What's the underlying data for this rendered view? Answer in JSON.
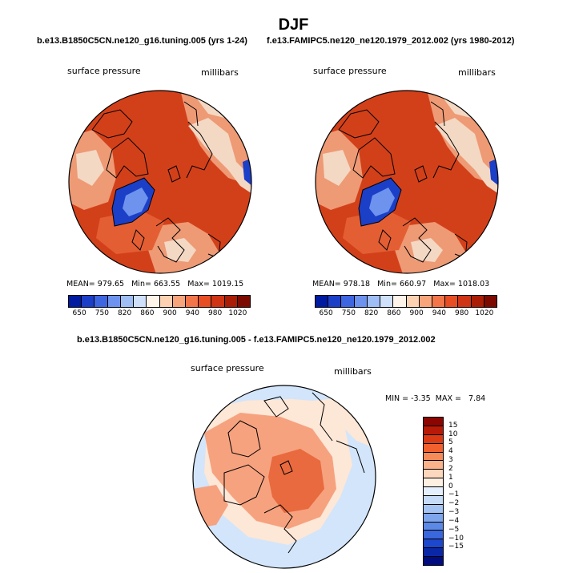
{
  "title": "DJF",
  "panels": [
    {
      "id": "left",
      "subtitle": "b.e13.B1850C5CN.ne120_g16.tuning.005 (yrs 1-24)",
      "variable": "surface pressure",
      "units": "millibars",
      "stats": {
        "mean_label": "MEAN=",
        "mean": "979.65",
        "min_label": "Min=",
        "min": "663.55",
        "max_label": "Max=",
        "max": "1019.15"
      }
    },
    {
      "id": "right",
      "subtitle": "f.e13.FAMIPC5.ne120_ne120.1979_2012.002 (yrs 1980-2012)",
      "variable": "surface pressure",
      "units": "millibars",
      "stats": {
        "mean_label": "MEAN=",
        "mean": "978.18",
        "min_label": "Min=",
        "min": "660.97",
        "max_label": "Max=",
        "max": "1018.03"
      }
    }
  ],
  "abs_colorbar": {
    "colors": [
      "#001aa0",
      "#1c3fc8",
      "#3e66e0",
      "#6d93ee",
      "#9fbef5",
      "#cfe0fb",
      "#fff4ea",
      "#fdd2b2",
      "#f9a57c",
      "#f3764a",
      "#e74e24",
      "#cf3414",
      "#aa1d06",
      "#7c0a00"
    ],
    "ticks": [
      "650",
      "750",
      "820",
      "860",
      "900",
      "940",
      "980",
      "1020"
    ]
  },
  "diff_panel": {
    "subtitle": "b.e13.B1850C5CN.ne120_g16.tuning.005 - f.e13.FAMIPC5.ne120_ne120.1979_2012.002",
    "variable": "surface pressure",
    "units": "millibars",
    "stats": {
      "min_label": "MIN =",
      "min": "-3.35",
      "max_label": "MAX =",
      "max": "7.84"
    }
  },
  "diff_colorbar": {
    "colors": [
      "#8c0500",
      "#b81a08",
      "#dc3a14",
      "#f1602e",
      "#f68a58",
      "#f9b28a",
      "#fcd6bd",
      "#fff0e2",
      "#e4f0fd",
      "#c6dcf8",
      "#a5c4f3",
      "#7fa6ed",
      "#5c88e6",
      "#3a67dd",
      "#1d47cc",
      "#0a28a6",
      "#000c80"
    ],
    "ticks": [
      "15",
      "10",
      "5",
      "4",
      "3",
      "2",
      "1",
      "0",
      "−1",
      "−2",
      "−3",
      "−4",
      "−5",
      "−10",
      "−15"
    ]
  },
  "map_colors": {
    "land_light": "#f3d8c4",
    "land_mid": "#ee9a75",
    "ocean_main": "#d2401a",
    "ocean_light": "#e45e34",
    "greenland_low": "#1c3fc8",
    "greenland_core": "#6d93ee",
    "diff_blue": "#d2e5fb",
    "diff_orange": "#f6a27f",
    "diff_deep": "#e96a3e",
    "diff_cream": "#fde7d7"
  }
}
